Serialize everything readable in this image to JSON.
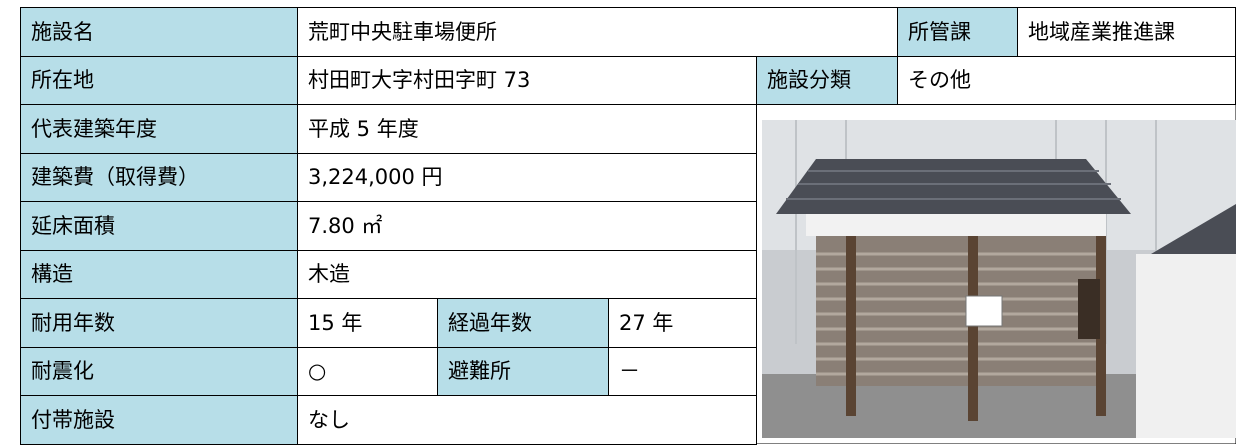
{
  "table": {
    "rows": [
      [
        "施設名",
        "荒町中央駐車場便所",
        "所管課",
        "地域産業推進課"
      ],
      [
        "所在地",
        "村田町大字村田字町 73",
        "施設分類",
        "その他"
      ],
      [
        "代表建築年度",
        "平成 5 年度"
      ],
      [
        "建築費（取得費）",
        "3,224,000 円"
      ],
      [
        "延床面積",
        "7.80 ㎡"
      ],
      [
        "構造",
        "木造"
      ],
      [
        "耐用年数",
        "15 年",
        "経過年数",
        "27 年"
      ],
      [
        "耐震化",
        "○",
        "避難所",
        "－"
      ],
      [
        "付帯施設",
        "なし"
      ]
    ]
  }
}
